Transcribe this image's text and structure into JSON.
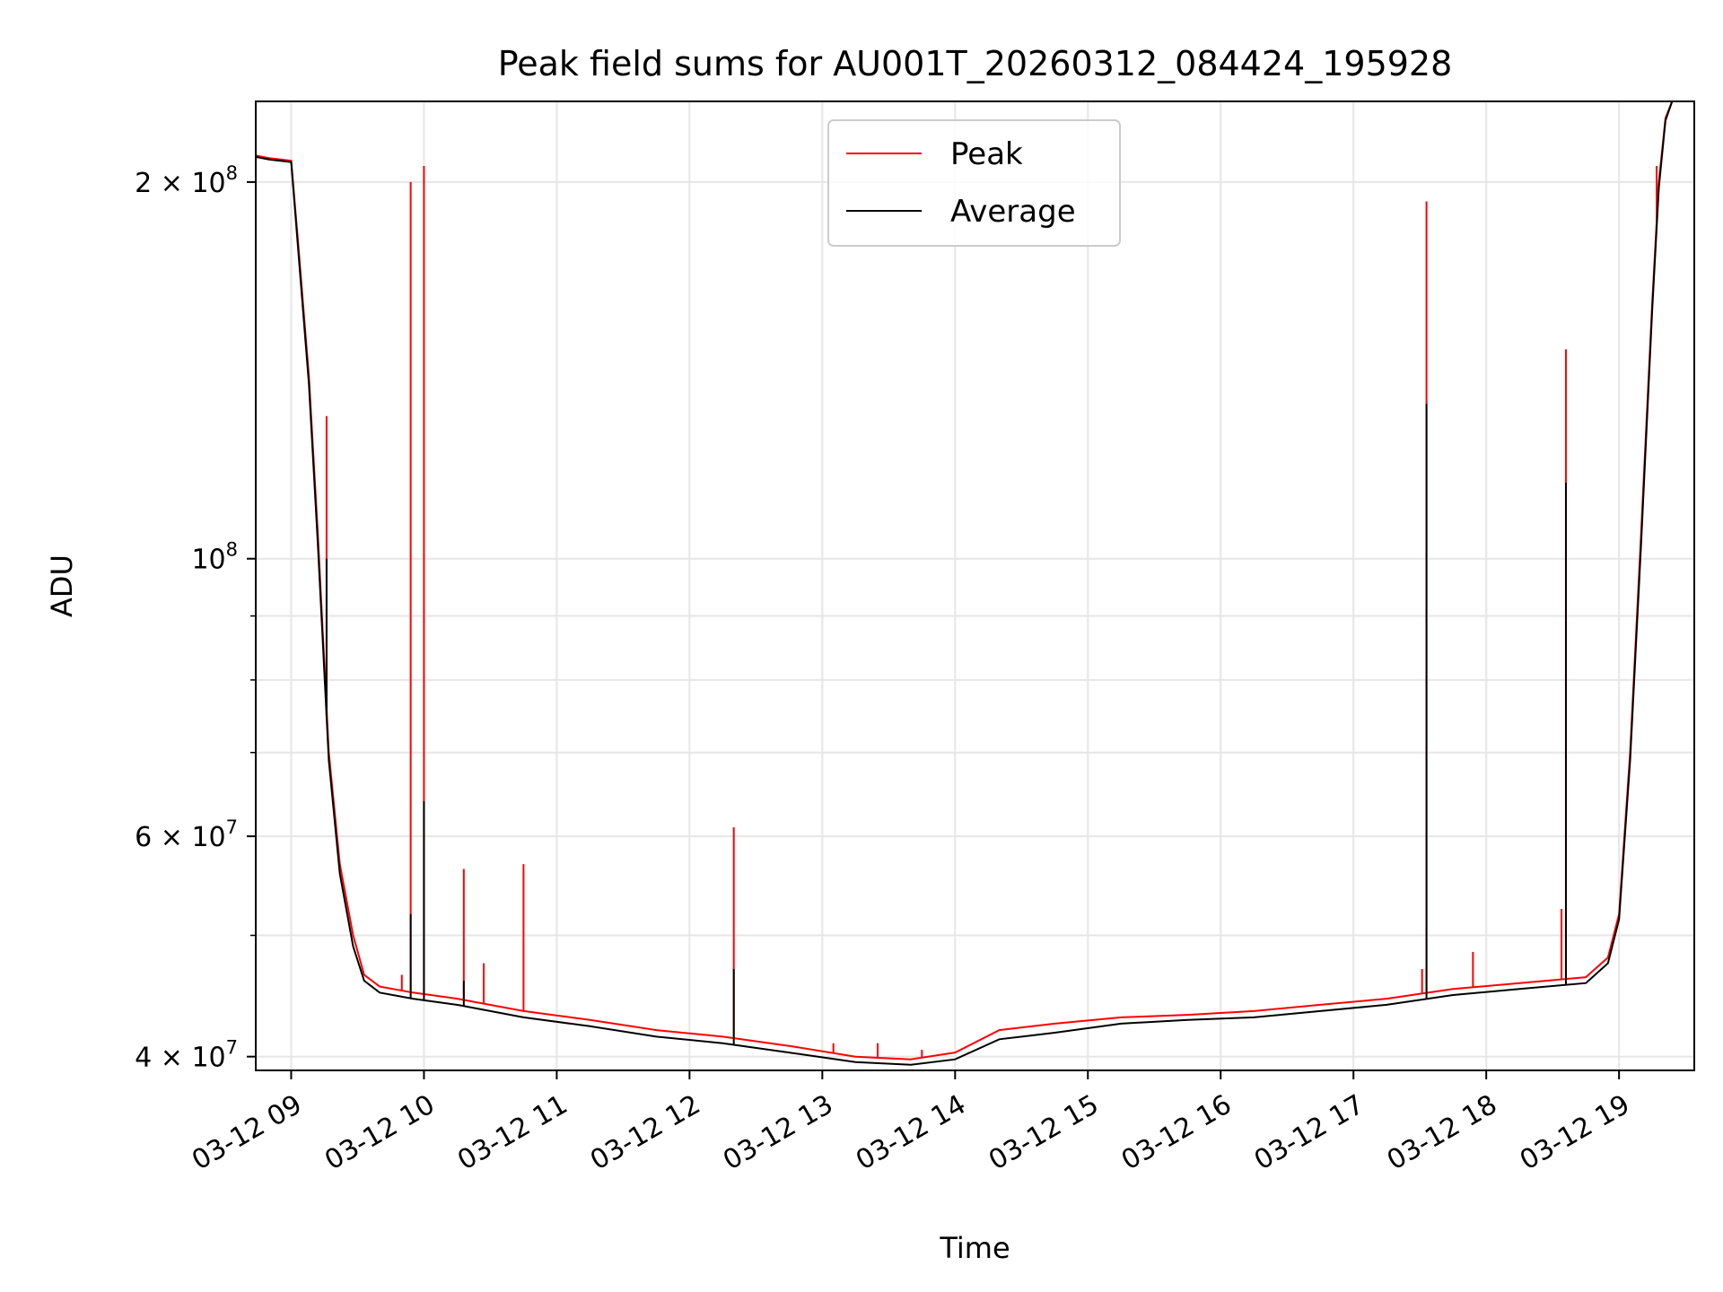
{
  "chart_data": {
    "type": "line",
    "title": "Peak field sums for AU001T_20260312_084424_195928",
    "xlabel": "Time",
    "ylabel": "ADU",
    "y_scale": "log",
    "ylim": [
      39000000,
      232000000
    ],
    "xlim": [
      "2026-03-12 08:44",
      "2026-03-12 19:34"
    ],
    "grid": true,
    "legend_position": "upper center",
    "x_ticks": [
      {
        "value": "2026-03-12 09:00",
        "label": "03-12 09"
      },
      {
        "value": "2026-03-12 10:00",
        "label": "03-12 10"
      },
      {
        "value": "2026-03-12 11:00",
        "label": "03-12 11"
      },
      {
        "value": "2026-03-12 12:00",
        "label": "03-12 12"
      },
      {
        "value": "2026-03-12 13:00",
        "label": "03-12 13"
      },
      {
        "value": "2026-03-12 14:00",
        "label": "03-12 14"
      },
      {
        "value": "2026-03-12 15:00",
        "label": "03-12 15"
      },
      {
        "value": "2026-03-12 16:00",
        "label": "03-12 16"
      },
      {
        "value": "2026-03-12 17:00",
        "label": "03-12 17"
      },
      {
        "value": "2026-03-12 18:00",
        "label": "03-12 18"
      },
      {
        "value": "2026-03-12 19:00",
        "label": "03-12 19"
      }
    ],
    "y_ticks": [
      {
        "value": 200000000,
        "mant": "2",
        "exp": "8"
      },
      {
        "value": 100000000,
        "mant": "",
        "exp": "8"
      },
      {
        "value": 60000000,
        "mant": "6",
        "exp": "7"
      },
      {
        "value": 40000000,
        "mant": "4",
        "exp": "7"
      }
    ],
    "y_minor_ticks": [
      50000000,
      70000000,
      80000000,
      90000000
    ],
    "series": [
      {
        "name": "Peak",
        "color": "#ff0000",
        "points": [
          [
            "2026-03-12 08:44",
            210000000
          ],
          [
            "2026-03-12 08:50",
            209000000
          ],
          [
            "2026-03-12 09:00",
            208000000
          ],
          [
            "2026-03-12 09:03",
            180000000
          ],
          [
            "2026-03-12 09:08",
            140000000
          ],
          [
            "2026-03-12 09:12",
            105000000
          ],
          [
            "2026-03-12 09:17",
            70000000
          ],
          [
            "2026-03-12 09:22",
            57000000
          ],
          [
            "2026-03-12 09:28",
            50000000
          ],
          [
            "2026-03-12 09:33",
            46500000
          ],
          [
            "2026-03-12 09:40",
            45500000
          ],
          [
            "2026-03-12 09:55",
            45000000
          ],
          [
            "2026-03-12 10:15",
            44500000
          ],
          [
            "2026-03-12 10:45",
            43500000
          ],
          [
            "2026-03-12 11:15",
            42800000
          ],
          [
            "2026-03-12 11:45",
            42000000
          ],
          [
            "2026-03-12 12:15",
            41500000
          ],
          [
            "2026-03-12 12:45",
            40800000
          ],
          [
            "2026-03-12 13:15",
            40000000
          ],
          [
            "2026-03-12 13:40",
            39800000
          ],
          [
            "2026-03-12 14:00",
            40300000
          ],
          [
            "2026-03-12 14:20",
            42000000
          ],
          [
            "2026-03-12 14:45",
            42500000
          ],
          [
            "2026-03-12 15:15",
            43000000
          ],
          [
            "2026-03-12 15:45",
            43200000
          ],
          [
            "2026-03-12 16:15",
            43500000
          ],
          [
            "2026-03-12 16:45",
            44000000
          ],
          [
            "2026-03-12 17:15",
            44500000
          ],
          [
            "2026-03-12 17:45",
            45300000
          ],
          [
            "2026-03-12 18:15",
            45800000
          ],
          [
            "2026-03-12 18:45",
            46300000
          ],
          [
            "2026-03-12 18:55",
            48000000
          ],
          [
            "2026-03-12 19:00",
            52000000
          ],
          [
            "2026-03-12 19:05",
            70000000
          ],
          [
            "2026-03-12 19:10",
            105000000
          ],
          [
            "2026-03-12 19:15",
            160000000
          ],
          [
            "2026-03-12 19:18",
            200000000
          ],
          [
            "2026-03-12 19:21",
            225000000
          ],
          [
            "2026-03-12 19:24",
            232000000
          ]
        ],
        "spikes": [
          [
            "2026-03-12 09:16",
            130000000
          ],
          [
            "2026-03-12 09:50",
            46500000
          ],
          [
            "2026-03-12 09:54",
            200000000
          ],
          [
            "2026-03-12 10:00",
            206000000
          ],
          [
            "2026-03-12 10:18",
            56500000
          ],
          [
            "2026-03-12 10:27",
            47500000
          ],
          [
            "2026-03-12 10:45",
            57000000
          ],
          [
            "2026-03-12 12:20",
            61000000
          ],
          [
            "2026-03-12 13:05",
            41000000
          ],
          [
            "2026-03-12 13:25",
            41000000
          ],
          [
            "2026-03-12 13:45",
            40500000
          ],
          [
            "2026-03-12 17:31",
            47000000
          ],
          [
            "2026-03-12 17:33",
            193000000
          ],
          [
            "2026-03-12 17:54",
            48500000
          ],
          [
            "2026-03-12 18:34",
            52500000
          ],
          [
            "2026-03-12 18:36",
            147000000
          ],
          [
            "2026-03-12 19:17",
            206000000
          ]
        ]
      },
      {
        "name": "Average",
        "color": "#000000",
        "points": [
          [
            "2026-03-12 08:44",
            209500000
          ],
          [
            "2026-03-12 08:50",
            208500000
          ],
          [
            "2026-03-12 09:00",
            207500000
          ],
          [
            "2026-03-12 09:03",
            178000000
          ],
          [
            "2026-03-12 09:08",
            138000000
          ],
          [
            "2026-03-12 09:12",
            103000000
          ],
          [
            "2026-03-12 09:17",
            69000000
          ],
          [
            "2026-03-12 09:22",
            56000000
          ],
          [
            "2026-03-12 09:28",
            49000000
          ],
          [
            "2026-03-12 09:33",
            46000000
          ],
          [
            "2026-03-12 09:40",
            45000000
          ],
          [
            "2026-03-12 09:55",
            44500000
          ],
          [
            "2026-03-12 10:15",
            44000000
          ],
          [
            "2026-03-12 10:45",
            43000000
          ],
          [
            "2026-03-12 11:15",
            42300000
          ],
          [
            "2026-03-12 11:45",
            41500000
          ],
          [
            "2026-03-12 12:15",
            41000000
          ],
          [
            "2026-03-12 12:45",
            40300000
          ],
          [
            "2026-03-12 13:15",
            39600000
          ],
          [
            "2026-03-12 13:40",
            39400000
          ],
          [
            "2026-03-12 14:00",
            39800000
          ],
          [
            "2026-03-12 14:20",
            41300000
          ],
          [
            "2026-03-12 14:45",
            41800000
          ],
          [
            "2026-03-12 15:15",
            42500000
          ],
          [
            "2026-03-12 15:45",
            42800000
          ],
          [
            "2026-03-12 16:15",
            43000000
          ],
          [
            "2026-03-12 16:45",
            43500000
          ],
          [
            "2026-03-12 17:15",
            44000000
          ],
          [
            "2026-03-12 17:45",
            44800000
          ],
          [
            "2026-03-12 18:15",
            45300000
          ],
          [
            "2026-03-12 18:45",
            45800000
          ],
          [
            "2026-03-12 18:55",
            47500000
          ],
          [
            "2026-03-12 19:00",
            51500000
          ],
          [
            "2026-03-12 19:05",
            69000000
          ],
          [
            "2026-03-12 19:10",
            103000000
          ],
          [
            "2026-03-12 19:15",
            158000000
          ],
          [
            "2026-03-12 19:18",
            198000000
          ],
          [
            "2026-03-12 19:21",
            224000000
          ],
          [
            "2026-03-12 19:24",
            232000000
          ]
        ],
        "spikes": [
          [
            "2026-03-12 09:16",
            100000000
          ],
          [
            "2026-03-12 09:54",
            52000000
          ],
          [
            "2026-03-12 10:00",
            64000000
          ],
          [
            "2026-03-12 10:18",
            46000000
          ],
          [
            "2026-03-12 12:20",
            47000000
          ],
          [
            "2026-03-12 17:33",
            133000000
          ],
          [
            "2026-03-12 18:36",
            115000000
          ]
        ]
      }
    ]
  }
}
